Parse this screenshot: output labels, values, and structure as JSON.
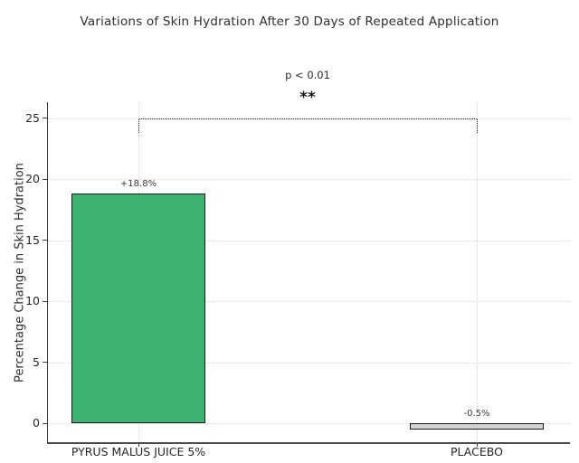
{
  "chart_data": {
    "type": "bar",
    "title": "Variations of Skin Hydration After 30 Days of Repeated Application",
    "xlabel": "",
    "ylabel": "Percentage Change in Skin Hydration",
    "categories": [
      "PYRUS MALUS JUICE 5%",
      "PLACEBO"
    ],
    "values": [
      18.8,
      -0.5
    ],
    "bar_labels": [
      "+18.8%",
      "-0.5%"
    ],
    "bar_colors": [
      "#3cb371",
      "#d3d3d3"
    ],
    "bar_edge_color": "#1a1a1a",
    "yticks": [
      0,
      5,
      10,
      15,
      20,
      25
    ],
    "ylim": [
      -1.6,
      26.4
    ],
    "grid": {
      "show": true,
      "style": "dotted",
      "color": "#d9d9d9",
      "axes": "both"
    },
    "legend": null,
    "annotations": {
      "p_label": "p < 0.01",
      "stars": "**",
      "bracket": {
        "from_category": "PYRUS MALUS JUICE 5%",
        "to_category": "PLACEBO",
        "y_value": 25
      }
    }
  }
}
